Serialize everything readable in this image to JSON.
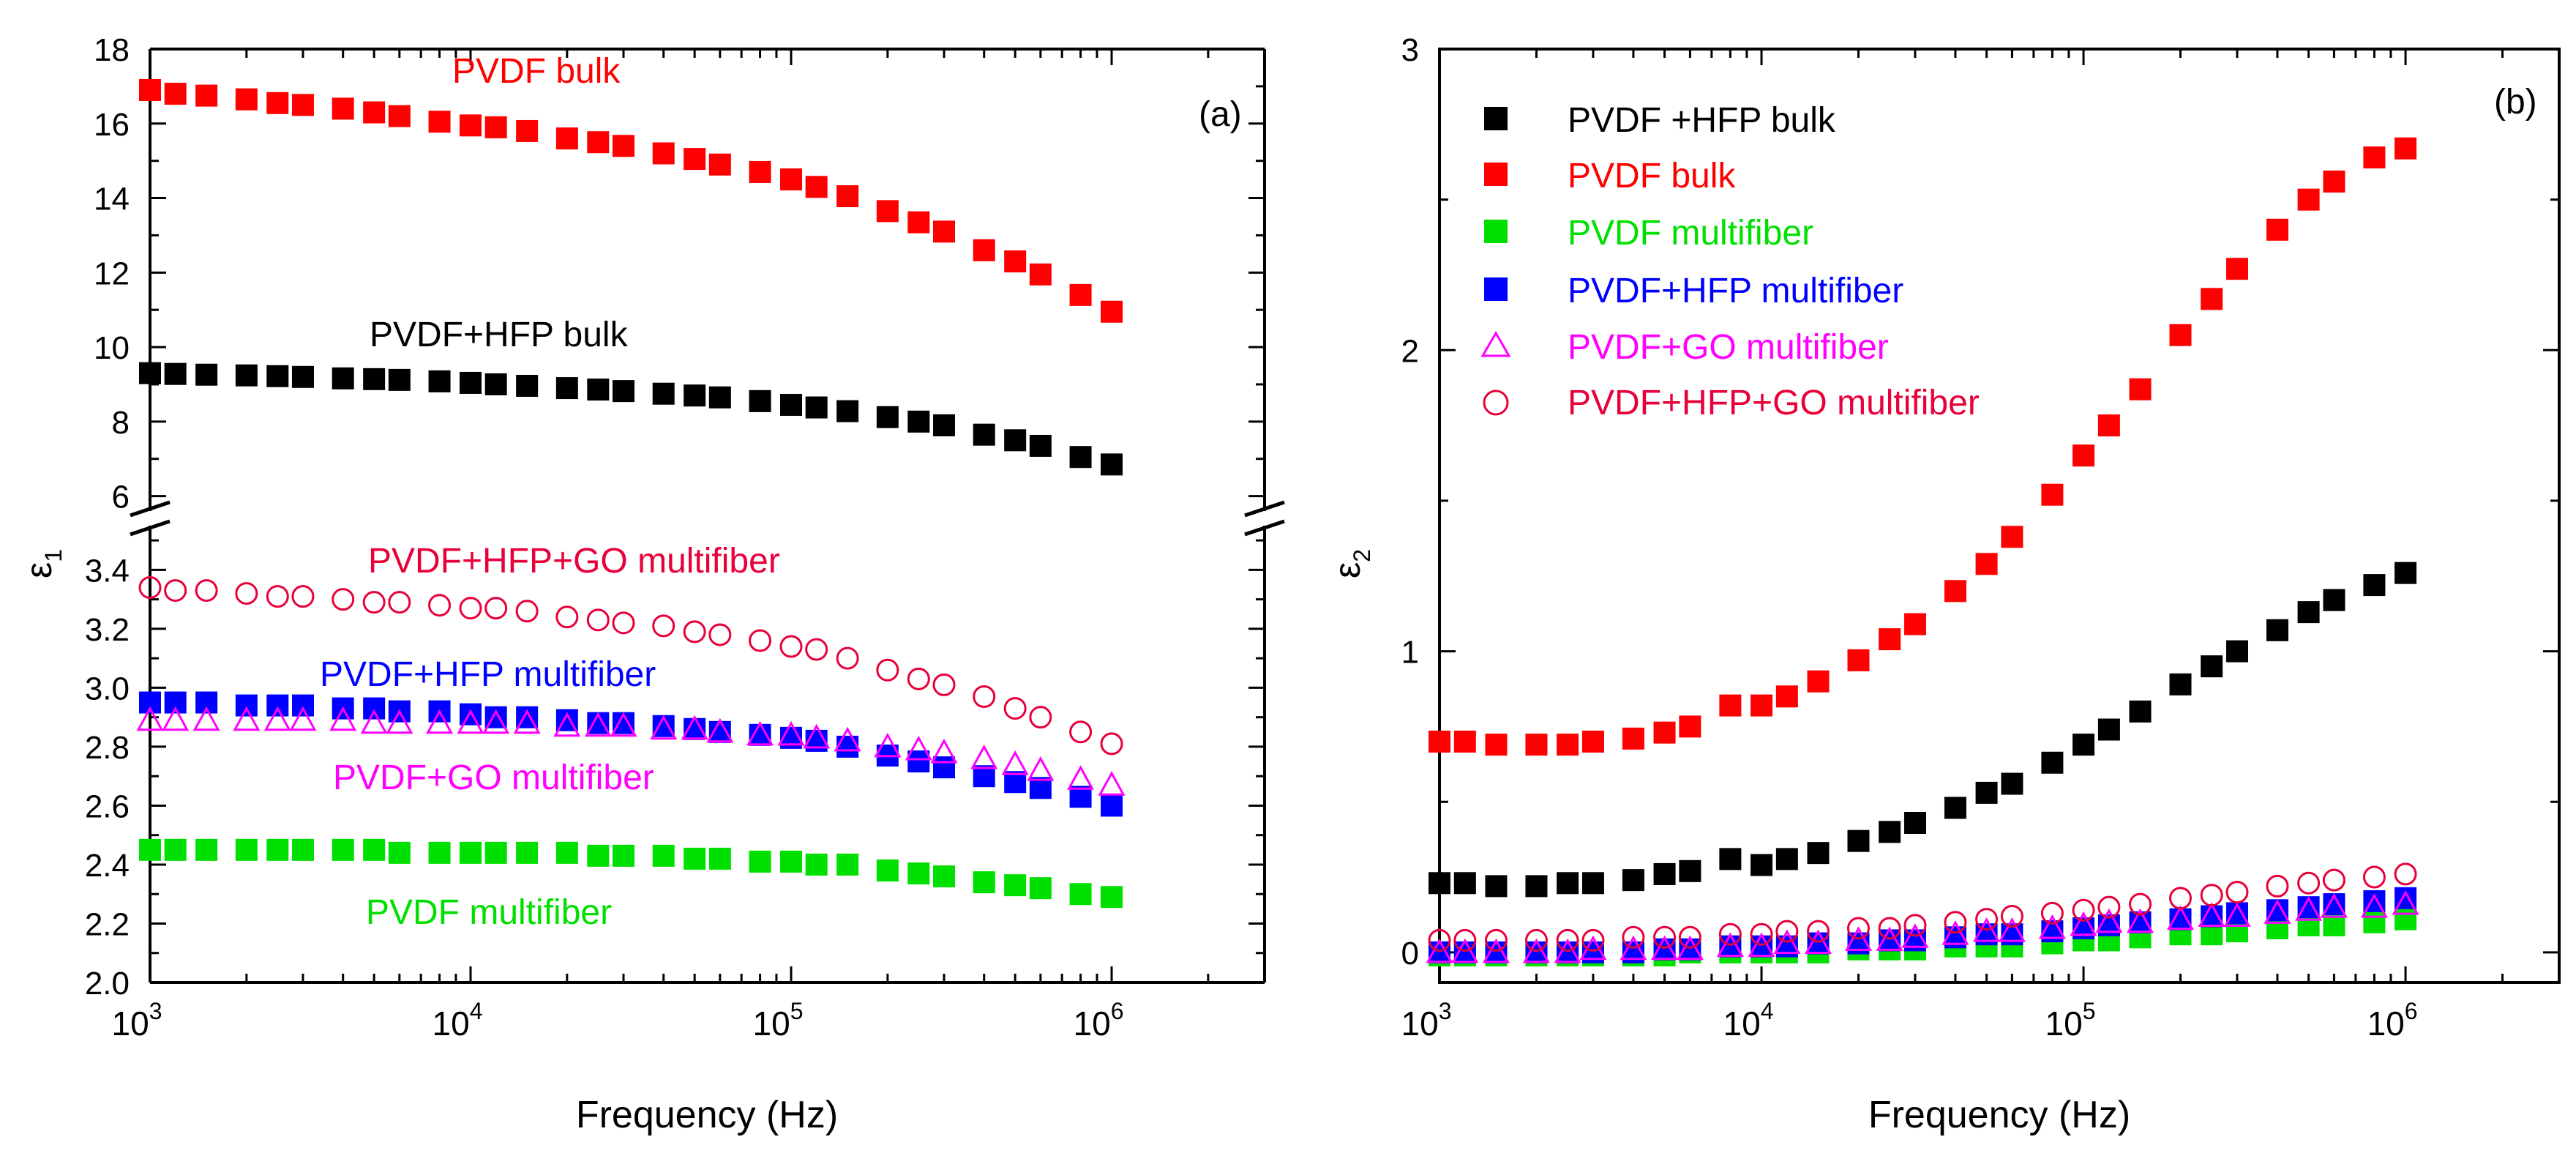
{
  "chart_data": [
    {
      "type": "scatter",
      "panel_label": "(a)",
      "xlabel": "Frequency (Hz)",
      "ylabel": "ε",
      "ylabel_sub": "1",
      "xscale": "log",
      "xlim": [
        1000,
        3000000
      ],
      "x_ticks": [
        {
          "base": "10",
          "exp": "3"
        },
        {
          "base": "10",
          "exp": "4"
        },
        {
          "base": "10",
          "exp": "5"
        },
        {
          "base": "10",
          "exp": "6"
        }
      ],
      "y_axis_break": true,
      "y_upper": {
        "ylim": [
          5.6,
          18
        ],
        "ticks": [
          "6",
          "8",
          "10",
          "12",
          "14",
          "16",
          "18"
        ]
      },
      "y_lower": {
        "ylim": [
          2.0,
          3.55
        ],
        "ticks": [
          "2.0",
          "2.2",
          "2.4",
          "2.6",
          "2.8",
          "3.0",
          "3.2",
          "3.4"
        ]
      },
      "x": [
        1000,
        1200,
        1500,
        2000,
        2500,
        3000,
        4000,
        5000,
        6000,
        8000,
        10000,
        12000,
        15000,
        20000,
        25000,
        30000,
        40000,
        50000,
        60000,
        80000,
        100000,
        120000,
        150000,
        200000,
        250000,
        300000,
        400000,
        500000,
        600000,
        800000,
        1000000
      ],
      "series": [
        {
          "name": "PVDF bulk",
          "label": "PVDF bulk",
          "color": "#ff0000",
          "marker": "square",
          "filled": true,
          "segment": "upper",
          "values": [
            16.9,
            16.8,
            16.75,
            16.65,
            16.55,
            16.5,
            16.4,
            16.3,
            16.2,
            16.05,
            15.95,
            15.9,
            15.8,
            15.6,
            15.5,
            15.4,
            15.2,
            15.05,
            14.9,
            14.7,
            14.5,
            14.3,
            14.05,
            13.65,
            13.35,
            13.1,
            12.6,
            12.3,
            11.95,
            11.4,
            10.95
          ]
        },
        {
          "name": "PVDF+HFP bulk",
          "label": "PVDF+HFP bulk",
          "color": "#000000",
          "marker": "square",
          "filled": true,
          "segment": "upper",
          "values": [
            9.3,
            9.28,
            9.26,
            9.24,
            9.22,
            9.2,
            9.16,
            9.14,
            9.12,
            9.08,
            9.04,
            9.0,
            8.96,
            8.9,
            8.86,
            8.82,
            8.75,
            8.7,
            8.65,
            8.55,
            8.45,
            8.38,
            8.28,
            8.12,
            8.0,
            7.9,
            7.65,
            7.5,
            7.35,
            7.05,
            6.85
          ]
        },
        {
          "name": "PVDF+HFP+GO multifiber",
          "label": "PVDF+HFP+GO multifiber",
          "color": "#e8003a",
          "marker": "circle",
          "filled": false,
          "segment": "lower",
          "values": [
            3.34,
            3.33,
            3.33,
            3.32,
            3.31,
            3.31,
            3.3,
            3.29,
            3.29,
            3.28,
            3.27,
            3.27,
            3.26,
            3.24,
            3.23,
            3.22,
            3.21,
            3.19,
            3.18,
            3.16,
            3.14,
            3.13,
            3.1,
            3.06,
            3.03,
            3.01,
            2.97,
            2.93,
            2.9,
            2.85,
            2.81
          ]
        },
        {
          "name": "PVDF+HFP multifiber",
          "label": "PVDF+HFP multifiber",
          "color": "#0000ff",
          "marker": "square",
          "filled": true,
          "segment": "lower",
          "values": [
            2.95,
            2.95,
            2.95,
            2.94,
            2.94,
            2.94,
            2.93,
            2.93,
            2.92,
            2.92,
            2.91,
            2.9,
            2.9,
            2.89,
            2.88,
            2.88,
            2.87,
            2.86,
            2.85,
            2.84,
            2.83,
            2.82,
            2.8,
            2.77,
            2.75,
            2.73,
            2.7,
            2.68,
            2.66,
            2.63,
            2.6
          ]
        },
        {
          "name": "PVDF+GO multifiber",
          "label": "PVDF+GO multifiber",
          "color": "#ff00ff",
          "marker": "triangle",
          "filled": false,
          "segment": "lower",
          "values": [
            2.89,
            2.89,
            2.89,
            2.89,
            2.89,
            2.89,
            2.89,
            2.88,
            2.88,
            2.88,
            2.88,
            2.88,
            2.88,
            2.87,
            2.87,
            2.87,
            2.86,
            2.86,
            2.85,
            2.84,
            2.84,
            2.83,
            2.82,
            2.8,
            2.79,
            2.78,
            2.76,
            2.74,
            2.72,
            2.69,
            2.67
          ]
        },
        {
          "name": "PVDF multifiber",
          "label": "PVDF multifiber",
          "color": "#00e000",
          "marker": "square",
          "filled": true,
          "segment": "lower",
          "values": [
            2.45,
            2.45,
            2.45,
            2.45,
            2.45,
            2.45,
            2.45,
            2.45,
            2.44,
            2.44,
            2.44,
            2.44,
            2.44,
            2.44,
            2.43,
            2.43,
            2.43,
            2.42,
            2.42,
            2.41,
            2.41,
            2.4,
            2.4,
            2.38,
            2.37,
            2.36,
            2.34,
            2.33,
            2.32,
            2.3,
            2.29
          ]
        }
      ]
    },
    {
      "type": "scatter",
      "panel_label": "(b)",
      "xlabel": "Frequency (Hz)",
      "ylabel": "ε",
      "ylabel_sub": "2",
      "xscale": "log",
      "xlim": [
        1000,
        3000000
      ],
      "ylim": [
        -0.1,
        3.0
      ],
      "y_ticks": [
        "0",
        "1",
        "2",
        "3"
      ],
      "x_ticks": [
        {
          "base": "10",
          "exp": "3"
        },
        {
          "base": "10",
          "exp": "4"
        },
        {
          "base": "10",
          "exp": "5"
        },
        {
          "base": "10",
          "exp": "6"
        }
      ],
      "legend_position": "top-left",
      "x": [
        1000,
        1200,
        1500,
        2000,
        2500,
        3000,
        4000,
        5000,
        6000,
        8000,
        10000,
        12000,
        15000,
        20000,
        25000,
        30000,
        40000,
        50000,
        60000,
        80000,
        100000,
        120000,
        150000,
        200000,
        250000,
        300000,
        400000,
        500000,
        600000,
        800000,
        1000000
      ],
      "series": [
        {
          "name": "PVDF +HFP bulk",
          "color": "#000000",
          "marker": "square",
          "filled": true,
          "values": [
            0.23,
            0.23,
            0.22,
            0.22,
            0.23,
            0.23,
            0.24,
            0.26,
            0.27,
            0.31,
            0.29,
            0.31,
            0.33,
            0.37,
            0.4,
            0.43,
            0.48,
            0.53,
            0.56,
            0.63,
            0.69,
            0.74,
            0.8,
            0.89,
            0.95,
            1.0,
            1.07,
            1.13,
            1.17,
            1.22,
            1.26
          ]
        },
        {
          "name": "PVDF bulk",
          "color": "#ff0000",
          "marker": "square",
          "filled": true,
          "values": [
            0.7,
            0.7,
            0.69,
            0.69,
            0.69,
            0.7,
            0.71,
            0.73,
            0.75,
            0.82,
            0.82,
            0.85,
            0.9,
            0.97,
            1.04,
            1.09,
            1.2,
            1.29,
            1.38,
            1.52,
            1.65,
            1.75,
            1.87,
            2.05,
            2.17,
            2.27,
            2.4,
            2.5,
            2.56,
            2.64,
            2.67
          ]
        },
        {
          "name": "PVDF multifiber",
          "color": "#00e000",
          "marker": "square",
          "filled": true,
          "values": [
            -0.01,
            -0.01,
            -0.01,
            -0.01,
            -0.01,
            -0.01,
            -0.01,
            -0.01,
            0.0,
            0.0,
            0.0,
            0.0,
            0.0,
            0.01,
            0.01,
            0.01,
            0.02,
            0.02,
            0.02,
            0.03,
            0.04,
            0.04,
            0.05,
            0.06,
            0.06,
            0.07,
            0.08,
            0.09,
            0.09,
            0.1,
            0.11
          ]
        },
        {
          "name": "PVDF+HFP multifiber",
          "color": "#0000ff",
          "marker": "square",
          "filled": true,
          "values": [
            0.0,
            0.0,
            0.0,
            0.0,
            0.0,
            0.0,
            0.0,
            0.01,
            0.01,
            0.02,
            0.02,
            0.02,
            0.03,
            0.03,
            0.04,
            0.04,
            0.05,
            0.06,
            0.06,
            0.07,
            0.08,
            0.09,
            0.1,
            0.11,
            0.12,
            0.13,
            0.14,
            0.15,
            0.16,
            0.17,
            0.18
          ]
        },
        {
          "name": "PVDF+GO multifiber",
          "color": "#ff00ff",
          "marker": "triangle",
          "filled": false,
          "values": [
            0.0,
            0.0,
            0.0,
            0.0,
            0.0,
            0.01,
            0.01,
            0.01,
            0.01,
            0.02,
            0.02,
            0.03,
            0.03,
            0.04,
            0.04,
            0.05,
            0.06,
            0.07,
            0.07,
            0.08,
            0.09,
            0.1,
            0.1,
            0.11,
            0.12,
            0.12,
            0.13,
            0.14,
            0.15,
            0.15,
            0.16
          ]
        },
        {
          "name": "PVDF+HFP+GO multifiber",
          "color": "#e8003a",
          "marker": "circle",
          "filled": false,
          "values": [
            0.04,
            0.04,
            0.04,
            0.04,
            0.04,
            0.04,
            0.05,
            0.05,
            0.05,
            0.06,
            0.06,
            0.07,
            0.07,
            0.08,
            0.08,
            0.09,
            0.1,
            0.11,
            0.12,
            0.13,
            0.14,
            0.15,
            0.16,
            0.18,
            0.19,
            0.2,
            0.22,
            0.23,
            0.24,
            0.25,
            0.26
          ]
        }
      ]
    }
  ]
}
